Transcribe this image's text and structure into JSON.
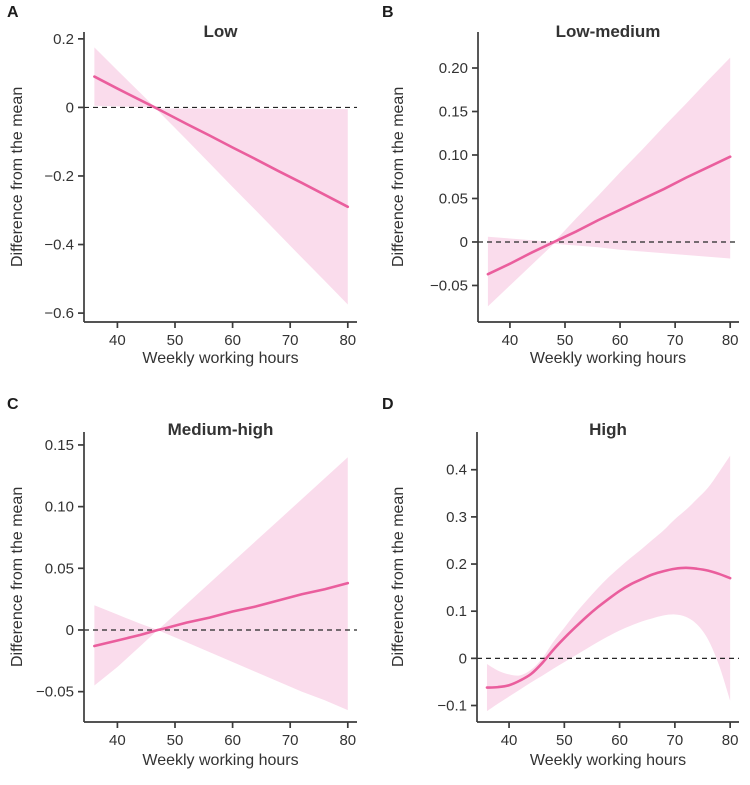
{
  "figure": {
    "x_axis_label": "Weekly working hours",
    "y_axis_label": "Difference from the mean"
  },
  "chart_data": {
    "type": "line",
    "subtype": "regression-effect with confidence band",
    "xlabel": "Weekly working hours",
    "ylabel": "Difference from the mean",
    "x_ticks": [
      40,
      50,
      60,
      70,
      80
    ],
    "x_range": [
      34.2,
      81.6
    ],
    "grid": false,
    "legend": "none",
    "reference_line_y": 0,
    "colors": {
      "mean_line": "#ea5e9d",
      "ci_band": "#fadcec",
      "axis": "#3b3b3b",
      "text": "#333333",
      "zero_dash": "#252525",
      "background": "#ffffff"
    },
    "panels": [
      {
        "panel_label": "A",
        "title": "Low",
        "y_range": [
          -0.626,
          0.22
        ],
        "y_ticks": [
          {
            "v": 0.2,
            "label": "0.2"
          },
          {
            "v": 0.0,
            "label": "0"
          },
          {
            "v": -0.2,
            "label": "−0.2"
          },
          {
            "v": -0.4,
            "label": "−0.4"
          },
          {
            "v": -0.6,
            "label": "−0.6"
          }
        ],
        "smooth": false,
        "x": [
          36,
          40,
          44,
          46.5,
          48,
          52,
          56,
          60,
          64,
          68,
          72,
          76,
          80
        ],
        "mean": [
          0.09,
          0.055,
          0.021,
          0.0,
          -0.013,
          -0.048,
          -0.082,
          -0.117,
          -0.151,
          -0.186,
          -0.22,
          -0.255,
          -0.29
        ],
        "ci_upper": [
          0.175,
          0.108,
          0.042,
          0.0,
          -0.003,
          -0.003,
          -0.004,
          -0.004,
          -0.004,
          -0.005,
          -0.005,
          -0.005,
          -0.005
        ],
        "ci_lower": [
          0.005,
          0.003,
          0.001,
          0.0,
          -0.026,
          -0.094,
          -0.163,
          -0.232,
          -0.3,
          -0.369,
          -0.438,
          -0.506,
          -0.575
        ]
      },
      {
        "panel_label": "B",
        "title": "Low-medium",
        "y_range": [
          -0.092,
          0.2414
        ],
        "y_ticks": [
          {
            "v": 0.2,
            "label": "0.20"
          },
          {
            "v": 0.15,
            "label": "0.15"
          },
          {
            "v": 0.1,
            "label": "0.10"
          },
          {
            "v": 0.05,
            "label": "0.05"
          },
          {
            "v": 0.0,
            "label": "0"
          },
          {
            "v": -0.05,
            "label": "−0.05"
          }
        ],
        "smooth": false,
        "x": [
          36,
          40,
          44,
          48,
          52,
          56,
          60,
          64,
          68,
          72,
          76,
          80
        ],
        "mean": [
          -0.037,
          -0.025,
          -0.012,
          0.0,
          0.012,
          0.025,
          0.037,
          0.049,
          0.061,
          0.074,
          0.086,
          0.098
        ],
        "ci_upper": [
          0.006,
          0.004,
          0.002,
          0.0,
          0.027,
          0.053,
          0.08,
          0.106,
          0.133,
          0.159,
          0.186,
          0.212
        ],
        "ci_lower": [
          -0.074,
          -0.05,
          -0.026,
          -0.002,
          -0.004,
          -0.006,
          -0.009,
          -0.011,
          -0.013,
          -0.015,
          -0.017,
          -0.019
        ]
      },
      {
        "panel_label": "C",
        "title": "Medium-high",
        "y_range": [
          -0.0746,
          0.1605
        ],
        "y_ticks": [
          {
            "v": 0.15,
            "label": "0.15"
          },
          {
            "v": 0.1,
            "label": "0.10"
          },
          {
            "v": 0.05,
            "label": "0.05"
          },
          {
            "v": 0.0,
            "label": "0"
          },
          {
            "v": -0.05,
            "label": "−0.05"
          }
        ],
        "smooth": false,
        "x": [
          36,
          40,
          44,
          47,
          48,
          52,
          56,
          60,
          64,
          68,
          72,
          76,
          80
        ],
        "mean": [
          -0.013,
          -0.0085,
          -0.004,
          0.0,
          0.001,
          0.006,
          0.01,
          0.015,
          0.019,
          0.024,
          0.029,
          0.033,
          0.038
        ],
        "ci_upper": [
          0.02,
          0.0125,
          0.005,
          0.0,
          0.004,
          0.021,
          0.038,
          0.055,
          0.072,
          0.089,
          0.106,
          0.123,
          0.14
        ],
        "ci_lower": [
          -0.045,
          -0.03,
          -0.013,
          0.0,
          -0.002,
          -0.01,
          -0.018,
          -0.026,
          -0.034,
          -0.042,
          -0.05,
          -0.057,
          -0.065
        ]
      },
      {
        "panel_label": "D",
        "title": "High",
        "y_range": [
          -0.135,
          0.48
        ],
        "y_ticks": [
          {
            "v": 0.4,
            "label": "0.4"
          },
          {
            "v": 0.3,
            "label": "0.3"
          },
          {
            "v": 0.2,
            "label": "0.2"
          },
          {
            "v": 0.1,
            "label": "0.1"
          },
          {
            "v": 0.0,
            "label": "0"
          },
          {
            "v": -0.1,
            "label": "−0.1"
          }
        ],
        "smooth": true,
        "x": [
          36,
          38,
          40,
          42,
          44,
          46,
          48,
          50,
          52,
          54,
          56,
          58,
          60,
          62,
          64,
          66,
          68,
          70,
          72,
          74,
          76,
          78,
          80
        ],
        "mean": [
          -0.062,
          -0.061,
          -0.057,
          -0.047,
          -0.033,
          -0.01,
          0.018,
          0.043,
          0.066,
          0.088,
          0.108,
          0.126,
          0.143,
          0.157,
          0.168,
          0.178,
          0.185,
          0.19,
          0.192,
          0.19,
          0.186,
          0.179,
          0.17
        ],
        "ci_upper": [
          -0.012,
          -0.026,
          -0.034,
          -0.036,
          -0.024,
          0.0,
          0.035,
          0.065,
          0.095,
          0.122,
          0.148,
          0.172,
          0.193,
          0.213,
          0.232,
          0.252,
          0.272,
          0.295,
          0.315,
          0.338,
          0.362,
          0.395,
          0.43
        ],
        "ci_lower": [
          -0.112,
          -0.096,
          -0.081,
          -0.066,
          -0.051,
          -0.037,
          -0.022,
          -0.008,
          0.006,
          0.02,
          0.034,
          0.047,
          0.059,
          0.069,
          0.078,
          0.085,
          0.091,
          0.093,
          0.088,
          0.072,
          0.04,
          -0.015,
          -0.09
        ]
      }
    ]
  }
}
